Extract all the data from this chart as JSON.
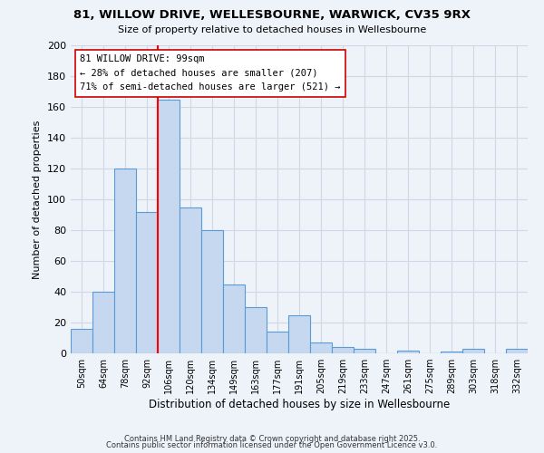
{
  "title": "81, WILLOW DRIVE, WELLESBOURNE, WARWICK, CV35 9RX",
  "subtitle": "Size of property relative to detached houses in Wellesbourne",
  "xlabel": "Distribution of detached houses by size in Wellesbourne",
  "ylabel": "Number of detached properties",
  "bar_labels": [
    "50sqm",
    "64sqm",
    "78sqm",
    "92sqm",
    "106sqm",
    "120sqm",
    "134sqm",
    "149sqm",
    "163sqm",
    "177sqm",
    "191sqm",
    "205sqm",
    "219sqm",
    "233sqm",
    "247sqm",
    "261sqm",
    "275sqm",
    "289sqm",
    "303sqm",
    "318sqm",
    "332sqm"
  ],
  "bar_values": [
    16,
    40,
    120,
    92,
    165,
    95,
    80,
    45,
    30,
    14,
    25,
    7,
    4,
    3,
    0,
    2,
    0,
    1,
    3,
    0,
    3
  ],
  "bar_color": "#c5d8f0",
  "bar_edge_color": "#5b9bd5",
  "vline_position": 3.5,
  "vline_color": "red",
  "ylim": [
    0,
    200
  ],
  "yticks": [
    0,
    20,
    40,
    60,
    80,
    100,
    120,
    140,
    160,
    180,
    200
  ],
  "annotation_title": "81 WILLOW DRIVE: 99sqm",
  "annotation_line1": "← 28% of detached houses are smaller (207)",
  "annotation_line2": "71% of semi-detached houses are larger (521) →",
  "bg_color": "#eef2f9",
  "grid_color": "#d0d8e8",
  "footer1": "Contains HM Land Registry data © Crown copyright and database right 2025.",
  "footer2": "Contains public sector information licensed under the Open Government Licence v3.0."
}
